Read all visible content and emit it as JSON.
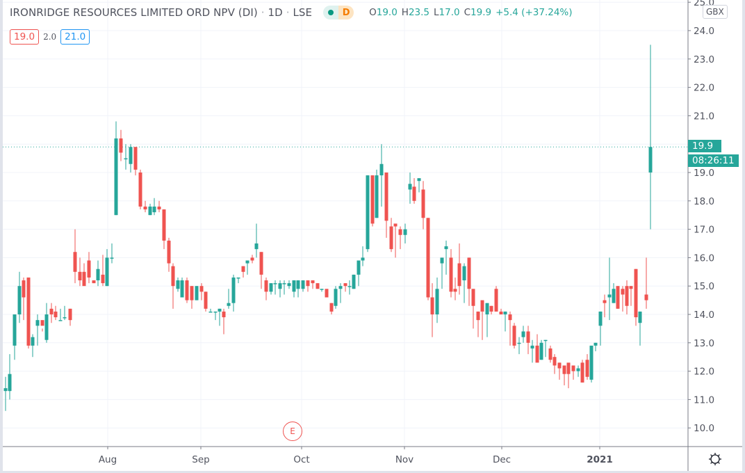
{
  "chart_data": {
    "type": "candlestick",
    "title": "IRONRIDGE RESOURCES LIMITED ORD NPV (DI)",
    "interval": "1D",
    "exchange": "LSE",
    "currency": "GBX",
    "ylim": [
      9.6,
      25.0
    ],
    "y_ticks": [
      10.0,
      11.0,
      12.0,
      13.0,
      14.0,
      15.0,
      16.0,
      17.0,
      18.0,
      19.0,
      20.0,
      21.0,
      22.0,
      23.0,
      24.0,
      25.0
    ],
    "x_ticks": [
      {
        "label": "Aug",
        "x": 155
      },
      {
        "label": "Sep",
        "x": 289
      },
      {
        "label": "Oct",
        "x": 434
      },
      {
        "label": "Nov",
        "x": 582
      },
      {
        "label": "Dec",
        "x": 722
      },
      {
        "label": "2021",
        "x": 863
      }
    ],
    "last_price": 19.9,
    "countdown": "08:26:11",
    "ohlc_latest": {
      "open": 19.0,
      "high": 23.5,
      "low": 17.0,
      "close": 19.9,
      "change": "+5.4",
      "change_pct": "(+37.24%)"
    },
    "candles": [
      [
        8,
        11.3,
        11.8,
        10.6,
        11.4
      ],
      [
        14,
        11.3,
        12.6,
        11.0,
        11.9
      ],
      [
        21,
        12.9,
        14.0,
        12.4,
        14.0
      ],
      [
        28,
        14.0,
        15.5,
        13.7,
        15.0
      ],
      [
        34,
        15.2,
        15.3,
        13.8,
        14.6
      ],
      [
        41,
        15.3,
        15.3,
        12.8,
        12.9
      ],
      [
        47,
        12.9,
        13.3,
        12.5,
        13.2
      ],
      [
        54,
        13.6,
        14.0,
        12.9,
        13.8
      ],
      [
        61,
        13.8,
        13.5,
        13.4,
        13.6
      ],
      [
        67,
        13.1,
        14.4,
        13.0,
        14.0
      ],
      [
        74,
        14.2,
        14.4,
        13.7,
        14.0
      ],
      [
        80,
        14.1,
        14.3,
        13.8,
        13.9
      ],
      [
        87,
        13.8,
        14.2,
        13.8,
        13.8
      ],
      [
        93,
        13.9,
        14.3,
        13.8,
        13.9
      ],
      [
        101,
        14.2,
        14.2,
        13.6,
        13.8
      ],
      [
        108,
        16.2,
        17.0,
        15.1,
        15.5
      ],
      [
        115,
        15.5,
        16.0,
        15.0,
        15.2
      ],
      [
        121,
        15.5,
        15.8,
        15.1,
        15.0
      ],
      [
        128,
        15.9,
        16.2,
        15.1,
        15.3
      ],
      [
        135,
        15.2,
        15.2,
        15.1,
        15.1
      ],
      [
        141,
        15.2,
        15.9,
        15.0,
        15.6
      ],
      [
        148,
        15.4,
        16.1,
        15.0,
        15.1
      ],
      [
        154,
        15.0,
        16.3,
        15.0,
        16.0
      ],
      [
        161,
        16.0,
        16.5,
        15.8,
        16.0
      ],
      [
        167,
        17.5,
        20.8,
        17.5,
        20.2
      ],
      [
        174,
        20.2,
        20.5,
        19.4,
        19.7
      ],
      [
        181,
        19.5,
        20.0,
        19.1,
        19.5
      ],
      [
        188,
        19.3,
        20.0,
        19.0,
        19.9
      ],
      [
        195,
        19.9,
        19.9,
        18.9,
        19.1
      ],
      [
        202,
        19.0,
        19.1,
        17.7,
        17.8
      ],
      [
        209,
        17.8,
        18.0,
        17.6,
        17.7
      ],
      [
        216,
        17.5,
        17.9,
        17.5,
        17.8
      ],
      [
        222,
        17.6,
        18.1,
        17.5,
        17.8
      ],
      [
        229,
        17.8,
        18.0,
        17.6,
        17.7
      ],
      [
        236,
        17.7,
        17.7,
        16.3,
        16.6
      ],
      [
        243,
        16.6,
        16.7,
        15.5,
        15.8
      ],
      [
        249,
        15.7,
        15.8,
        14.2,
        15.0
      ],
      [
        256,
        14.9,
        15.3,
        14.8,
        15.2
      ],
      [
        262,
        14.6,
        15.3,
        14.6,
        15.2
      ],
      [
        269,
        15.2,
        15.3,
        14.4,
        14.5
      ],
      [
        276,
        15.0,
        15.0,
        14.2,
        14.5
      ],
      [
        283,
        14.5,
        15.0,
        14.5,
        15.0
      ],
      [
        290,
        15.0,
        15.1,
        14.5,
        14.8
      ],
      [
        296,
        14.8,
        14.8,
        14.1,
        14.2
      ],
      [
        303,
        14.1,
        14.2,
        14.1,
        14.1
      ],
      [
        310,
        14.1,
        14.1,
        13.8,
        14.1
      ],
      [
        316,
        14.1,
        14.2,
        13.6,
        14.2
      ],
      [
        322,
        14.1,
        14.2,
        13.3,
        13.9
      ],
      [
        329,
        14.3,
        14.9,
        14.2,
        14.4
      ],
      [
        336,
        14.4,
        15.4,
        14.1,
        15.3
      ],
      [
        343,
        15.3,
        15.3,
        15.1,
        15.3
      ],
      [
        350,
        15.7,
        15.7,
        15.3,
        15.5
      ],
      [
        356,
        15.8,
        15.8,
        15.4,
        15.9
      ],
      [
        363,
        16.0,
        16.1,
        15.8,
        15.9
      ],
      [
        369,
        16.3,
        17.2,
        16.0,
        16.5
      ],
      [
        376,
        16.2,
        16.2,
        14.9,
        15.4
      ],
      [
        383,
        15.2,
        15.3,
        14.5,
        14.8
      ],
      [
        390,
        14.8,
        15.1,
        14.7,
        15.1
      ],
      [
        396,
        15.1,
        15.2,
        14.7,
        15.1
      ],
      [
        403,
        14.9,
        15.2,
        14.6,
        15.1
      ],
      [
        409,
        15.1,
        15.2,
        14.7,
        15.1
      ],
      [
        416,
        15.0,
        15.2,
        14.9,
        15.1
      ],
      [
        423,
        14.8,
        15.2,
        14.6,
        15.2
      ],
      [
        429,
        14.9,
        15.2,
        14.6,
        15.2
      ],
      [
        436,
        14.9,
        15.2,
        14.8,
        15.2
      ],
      [
        443,
        15.2,
        15.2,
        14.8,
        15.0
      ],
      [
        450,
        15.2,
        15.2,
        14.9,
        15.1
      ],
      [
        457,
        15.1,
        15.1,
        14.9,
        14.9
      ],
      [
        463,
        14.9,
        14.9,
        14.8,
        14.9
      ],
      [
        470,
        14.9,
        14.8,
        14.6,
        14.6
      ],
      [
        477,
        14.4,
        14.4,
        14.0,
        14.1
      ],
      [
        483,
        14.3,
        15.0,
        14.2,
        14.9
      ],
      [
        490,
        14.9,
        15.1,
        14.4,
        15.0
      ],
      [
        497,
        15.1,
        15.1,
        14.8,
        15.0
      ],
      [
        503,
        15.0,
        15.2,
        14.7,
        15.0
      ],
      [
        509,
        14.9,
        15.4,
        14.9,
        15.4
      ],
      [
        516,
        15.4,
        15.6,
        15.0,
        15.9
      ],
      [
        522,
        15.9,
        16.4,
        15.7,
        16.0
      ],
      [
        529,
        16.3,
        18.9,
        16.2,
        18.9
      ],
      [
        536,
        18.9,
        18.9,
        17.1,
        17.2
      ],
      [
        542,
        17.4,
        19.1,
        17.4,
        18.9
      ],
      [
        549,
        18.9,
        20.0,
        17.8,
        19.3
      ],
      [
        556,
        19.0,
        19.0,
        16.7,
        17.3
      ],
      [
        563,
        17.1,
        17.4,
        16.2,
        16.3
      ],
      [
        569,
        17.2,
        17.2,
        16.0,
        17.1
      ],
      [
        576,
        17.0,
        17.1,
        16.3,
        16.8
      ],
      [
        583,
        16.8,
        17.2,
        16.5,
        17.0
      ],
      [
        590,
        18.4,
        19.0,
        17.9,
        18.6
      ],
      [
        596,
        18.5,
        18.8,
        17.9,
        18.0
      ],
      [
        603,
        18.7,
        18.7,
        18.3,
        18.8
      ],
      [
        609,
        18.4,
        18.7,
        17.0,
        17.4
      ],
      [
        616,
        17.4,
        17.4,
        14.5,
        14.6
      ],
      [
        622,
        14.6,
        15.1,
        13.2,
        14.0
      ],
      [
        629,
        14.0,
        15.3,
        13.7,
        14.9
      ],
      [
        636,
        15.8,
        16.0,
        14.9,
        16.0
      ],
      [
        642,
        16.3,
        16.6,
        15.4,
        16.4
      ],
      [
        649,
        16.0,
        16.3,
        14.6,
        14.8
      ],
      [
        655,
        14.9,
        15.3,
        14.5,
        14.8
      ],
      [
        661,
        15.8,
        16.5,
        14.7,
        15.0
      ],
      [
        668,
        15.2,
        15.8,
        14.4,
        15.7
      ],
      [
        675,
        16.0,
        16.0,
        14.3,
        14.9
      ],
      [
        681,
        14.9,
        14.8,
        13.5,
        14.3
      ],
      [
        688,
        14.1,
        14.1,
        13.2,
        13.8
      ],
      [
        694,
        14.5,
        14.1,
        13.1,
        14.1
      ],
      [
        701,
        14.0,
        14.2,
        13.2,
        14.4
      ],
      [
        707,
        14.3,
        14.3,
        14.0,
        14.1
      ],
      [
        714,
        14.9,
        15.0,
        14.1,
        14.1
      ],
      [
        721,
        14.1,
        14.2,
        14.1,
        14.0
      ],
      [
        727,
        14.0,
        14.1,
        13.4,
        14.1
      ],
      [
        734,
        14.0,
        14.1,
        12.9,
        13.8
      ],
      [
        740,
        13.6,
        13.7,
        12.8,
        12.9
      ],
      [
        747,
        13.0,
        13.2,
        12.6,
        13.0
      ],
      [
        753,
        13.2,
        13.6,
        13.0,
        13.4
      ],
      [
        760,
        13.4,
        13.6,
        12.6,
        13.0
      ],
      [
        766,
        12.8,
        13.1,
        12.3,
        12.9
      ],
      [
        773,
        12.9,
        13.3,
        12.4,
        12.3
      ],
      [
        779,
        12.4,
        13.1,
        12.4,
        13.0
      ],
      [
        785,
        13.1,
        13.1,
        12.5,
        13.1
      ],
      [
        792,
        12.8,
        12.9,
        12.3,
        12.4
      ],
      [
        798,
        12.5,
        12.6,
        11.9,
        12.2
      ],
      [
        805,
        12.3,
        12.3,
        11.7,
        12.1
      ],
      [
        812,
        12.2,
        12.2,
        11.5,
        11.9
      ],
      [
        818,
        12.3,
        12.2,
        11.4,
        11.9
      ],
      [
        825,
        12.2,
        12.2,
        11.7,
        12.0
      ],
      [
        832,
        12.0,
        12.2,
        11.8,
        12.1
      ],
      [
        838,
        12.3,
        12.4,
        11.6,
        11.6
      ],
      [
        845,
        12.4,
        12.6,
        11.7,
        11.8
      ],
      [
        851,
        11.7,
        12.8,
        11.6,
        12.9
      ],
      [
        857,
        12.9,
        13.0,
        12.7,
        13.0
      ],
      [
        864,
        13.6,
        14.1,
        12.9,
        14.1
      ],
      [
        870,
        14.5,
        14.7,
        13.9,
        14.4
      ],
      [
        877,
        14.6,
        16.0,
        13.8,
        14.7
      ],
      [
        883,
        14.4,
        15.1,
        14.4,
        14.9
      ],
      [
        889,
        15.0,
        15.0,
        14.2,
        14.2
      ],
      [
        896,
        14.9,
        15.0,
        14.1,
        14.7
      ],
      [
        902,
        15.0,
        15.2,
        14.0,
        14.3
      ],
      [
        908,
        15.0,
        15.0,
        14.3,
        14.9
      ],
      [
        915,
        15.6,
        15.6,
        13.6,
        13.9
      ],
      [
        921,
        13.7,
        14.1,
        12.9,
        14.1
      ],
      [
        930,
        14.7,
        16.0,
        14.2,
        14.5
      ],
      [
        936,
        19.0,
        23.5,
        17.0,
        19.9
      ]
    ],
    "annotations": [
      {
        "type": "earnings",
        "label": "E"
      }
    ]
  },
  "header": {
    "symbol_title": "IRONRIDGE RESOURCES LIMITED ORD NPV (DI)",
    "sep": "·",
    "interval": "1D",
    "exchange": "LSE",
    "status_letter": "D",
    "ohlc": [
      {
        "k": "O",
        "v": "19.0"
      },
      {
        "k": "H",
        "v": "23.5"
      },
      {
        "k": "L",
        "v": "17.0"
      },
      {
        "k": "C",
        "v": "19.9"
      }
    ],
    "change": "+5.4 (+37.24%)"
  },
  "indicator": {
    "left_value": "19.0",
    "mid_value": "2.0",
    "right_value": "21.0"
  },
  "axis": {
    "currency_label": "GBX",
    "price_tag": "19.9",
    "countdown": "08:26:11",
    "top_tick": "25.0"
  },
  "markers": {
    "earnings": "E"
  },
  "colors": {
    "up": "#26a69a",
    "down": "#ef5350",
    "grid": "#f0f3fa",
    "axis_text": "#50535e",
    "pill_bg": "#dff2ef",
    "pill_d_bg": "#fde4c2",
    "pill_d_text": "#f57c00"
  }
}
